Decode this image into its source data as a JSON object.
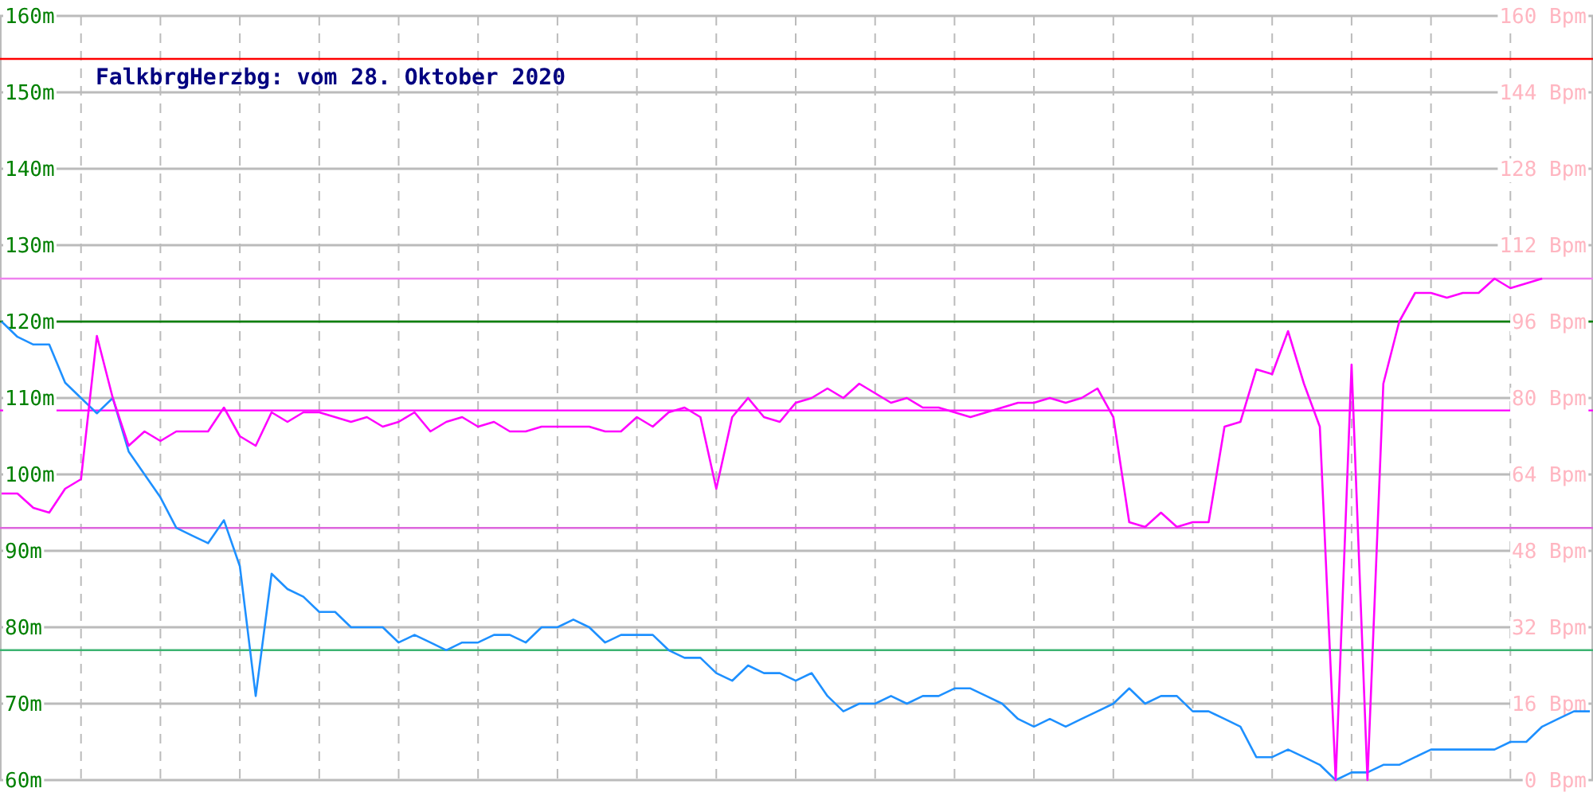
{
  "chart_data": {
    "type": "line",
    "title": "FalkbrgHerzbg: vom 28. Oktober 2020",
    "categories": [
      null,
      null,
      null,
      null,
      null,
      null,
      null,
      null,
      null,
      null,
      null,
      null,
      null,
      null,
      null,
      null,
      null,
      null,
      null,
      null,
      null,
      null,
      null,
      null,
      null,
      null,
      null,
      null,
      null,
      null,
      null,
      null,
      null,
      null,
      null,
      null,
      null,
      null,
      null,
      null,
      null,
      null,
      null,
      null,
      null,
      null,
      null,
      null,
      null,
      null,
      null,
      null,
      null,
      null,
      null,
      null,
      null,
      null,
      null,
      null,
      null,
      null,
      null,
      null,
      null,
      null,
      null,
      null,
      null,
      null,
      null,
      null,
      null,
      null,
      null,
      null,
      null,
      null,
      null,
      null,
      null,
      null,
      null,
      null,
      null,
      null,
      null,
      null,
      null,
      null,
      null,
      null,
      null,
      null,
      null,
      null,
      null,
      null,
      null,
      null,
      null
    ],
    "series": [
      {
        "color": "#1e90ff",
        "axis": "y",
        "values": [
          120,
          118,
          117,
          117,
          112,
          110,
          108,
          110,
          103,
          100,
          97,
          93,
          92,
          91,
          94,
          88,
          71,
          87,
          85,
          84,
          82,
          82,
          80,
          80,
          80,
          78,
          79,
          78,
          77,
          78,
          78,
          79,
          79,
          78,
          80,
          80,
          81,
          80,
          78,
          79,
          79,
          79,
          77,
          76,
          76,
          74,
          73,
          75,
          74,
          74,
          73,
          74,
          71,
          69,
          70,
          70,
          71,
          70,
          71,
          71,
          72,
          72,
          71,
          70,
          68,
          67,
          68,
          67,
          68,
          69,
          70,
          72,
          70,
          71,
          71,
          69,
          69,
          68,
          67,
          63,
          63,
          64,
          63,
          62,
          60,
          61,
          61,
          62,
          62,
          63,
          64,
          64,
          64,
          64,
          64,
          65,
          65,
          67,
          68,
          69,
          69
        ]
      },
      {
        "color": "#ff00ff",
        "axis": "y2",
        "values": [
          60,
          60,
          57,
          56,
          61,
          63,
          93,
          80,
          70,
          73,
          71,
          73,
          73,
          73,
          78,
          72,
          70,
          77,
          75,
          77,
          77,
          76,
          75,
          76,
          74,
          75,
          77,
          73,
          75,
          76,
          74,
          75,
          73,
          73,
          74,
          74,
          74,
          74,
          73,
          73,
          76,
          74,
          77,
          78,
          76,
          61,
          76,
          80,
          76,
          75,
          79,
          80,
          82,
          80,
          83,
          81,
          79,
          80,
          78,
          78,
          77,
          76,
          77,
          78,
          79,
          79,
          80,
          79,
          80,
          82,
          76,
          54,
          53,
          56,
          53,
          54,
          54,
          74,
          75,
          86,
          85,
          94,
          83,
          74,
          0,
          87,
          0,
          83,
          96,
          102,
          102,
          101,
          102,
          102,
          105,
          103,
          104,
          105,
          null,
          null,
          null
        ]
      }
    ],
    "ylim": [
      60,
      160
    ],
    "yticks": [
      {
        "value": 60,
        "label": "60m"
      },
      {
        "value": 70,
        "label": "70m"
      },
      {
        "value": 80,
        "label": "80m"
      },
      {
        "value": 90,
        "label": "90m"
      },
      {
        "value": 100,
        "label": "100m"
      },
      {
        "value": 110,
        "label": "110m"
      },
      {
        "value": 120,
        "label": "120m"
      },
      {
        "value": 130,
        "label": "130m"
      },
      {
        "value": 140,
        "label": "140m"
      },
      {
        "value": 150,
        "label": "150m"
      },
      {
        "value": 160,
        "label": "160m"
      }
    ],
    "y2lim": [
      0,
      160
    ],
    "y2ticks": [
      {
        "value": 0,
        "label": "0 Bpm"
      },
      {
        "value": 16,
        "label": "16 Bpm"
      },
      {
        "value": 32,
        "label": "32 Bpm"
      },
      {
        "value": 48,
        "label": "48 Bpm"
      },
      {
        "value": 64,
        "label": "64 Bpm"
      },
      {
        "value": 80,
        "label": "80 Bpm"
      },
      {
        "value": 96,
        "label": "96 Bpm"
      },
      {
        "value": 112,
        "label": "112 Bpm"
      },
      {
        "value": 128,
        "label": "128 Bpm"
      },
      {
        "value": 144,
        "label": "144 Bpm"
      },
      {
        "value": 160,
        "label": "160 Bpm"
      }
    ],
    "ref_lines": [
      {
        "axis": "y2",
        "value": 151,
        "color": "#ff0000"
      },
      {
        "axis": "y2",
        "value": 105,
        "color": "#ee82ee"
      },
      {
        "axis": "y2",
        "value": 77.4,
        "color": "#ff00ff"
      },
      {
        "axis": "y2",
        "value": 52.8,
        "color": "#dd66dd"
      },
      {
        "axis": "y",
        "value": 120,
        "color": "#008000"
      },
      {
        "axis": "y",
        "value": 77,
        "color": "#3cb371"
      }
    ],
    "grid": true
  }
}
